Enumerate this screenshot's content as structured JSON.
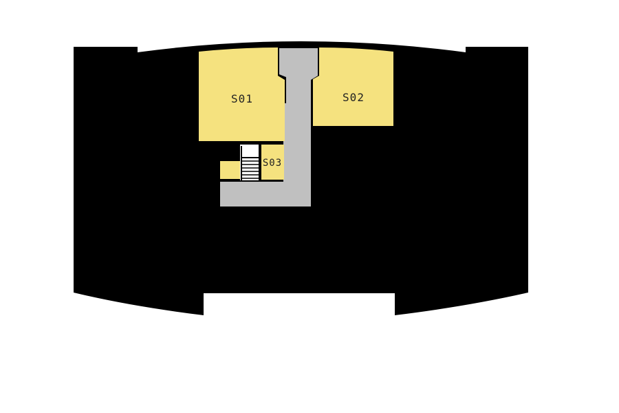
{
  "colors": {
    "background": "#ffffff",
    "building": "#000000",
    "room": "#f5e27f",
    "corridor": "#c0c0c0",
    "stair": "#ffffff",
    "label": "#222222"
  },
  "rooms": [
    {
      "id": "room-s01",
      "label": "S01"
    },
    {
      "id": "room-s02",
      "label": "S02"
    },
    {
      "id": "room-s03",
      "label": "S03"
    }
  ]
}
